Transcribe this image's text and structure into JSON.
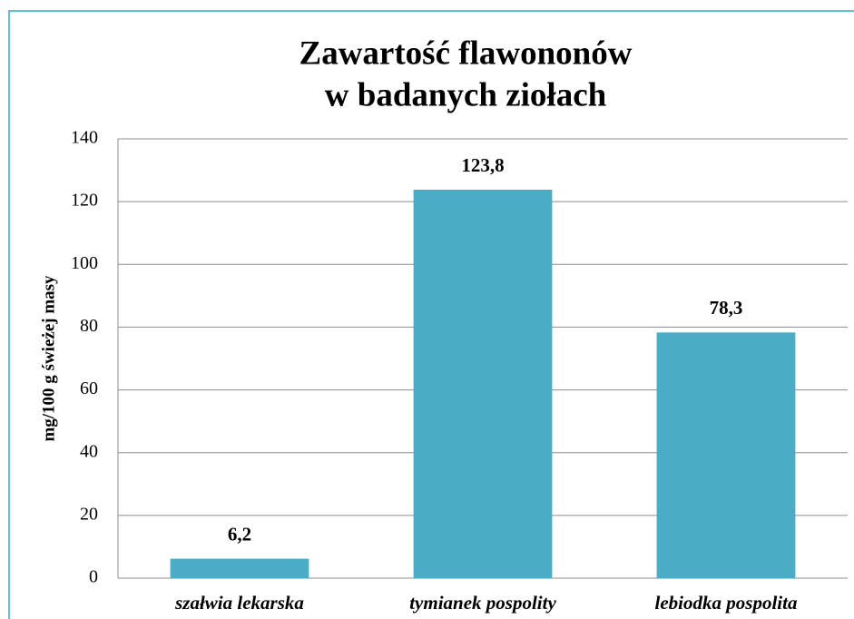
{
  "chart_data": {
    "type": "bar",
    "title": [
      "Zawartość flawononów",
      "w badanych ziołach"
    ],
    "ylabel": "mg/100 g świeżej masy",
    "categories": [
      "szałwia lekarska",
      "tymianek pospolity",
      "lebiodka pospolita"
    ],
    "values": [
      6.2,
      123.8,
      78.3
    ],
    "value_labels": [
      "6,2",
      "123,8",
      "78,3"
    ],
    "color": "#4bacc6",
    "ylim": [
      0,
      140
    ],
    "yticks": [
      0,
      20,
      40,
      60,
      80,
      100,
      120,
      140
    ],
    "grid": true
  }
}
